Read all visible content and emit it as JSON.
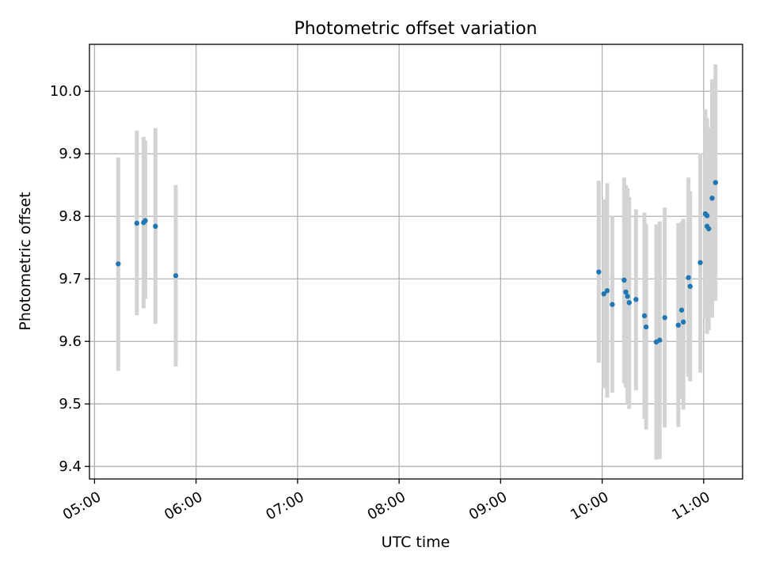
{
  "chart_data": {
    "type": "scatter",
    "title": "Photometric offset variation",
    "xlabel": "UTC time",
    "ylabel": "Photometric offset",
    "xlim": [
      "04:57",
      "11:23"
    ],
    "ylim": [
      9.38,
      10.075
    ],
    "grid": true,
    "x_ticks": [
      "05:00",
      "06:00",
      "07:00",
      "08:00",
      "09:00",
      "10:00",
      "11:00"
    ],
    "y_ticks": [
      9.4,
      9.5,
      9.6,
      9.7,
      9.8,
      9.9,
      10.0
    ],
    "y_tick_labels": [
      "9.4",
      "9.5",
      "9.6",
      "9.7",
      "9.8",
      "9.9",
      "10.0"
    ],
    "colors": {
      "marker": "#1f77b4",
      "errorbar": "#d3d3d3",
      "grid": "#b0b0b0"
    },
    "series": [
      {
        "points": [
          {
            "x": "05:14",
            "y": 9.724,
            "ylow": 9.553,
            "yhigh": 9.894
          },
          {
            "x": "05:25",
            "y": 9.789,
            "ylow": 9.642,
            "yhigh": 9.937
          },
          {
            "x": "05:29",
            "y": 9.79,
            "ylow": 9.653,
            "yhigh": 9.927
          },
          {
            "x": "05:30",
            "y": 9.793,
            "ylow": 9.668,
            "yhigh": 9.921
          },
          {
            "x": "05:36",
            "y": 9.784,
            "ylow": 9.628,
            "yhigh": 9.941
          },
          {
            "x": "05:48",
            "y": 9.705,
            "ylow": 9.56,
            "yhigh": 9.85
          },
          {
            "x": "09:58",
            "y": 9.711,
            "ylow": 9.566,
            "yhigh": 9.857
          },
          {
            "x": "10:01",
            "y": 9.676,
            "ylow": 9.525,
            "yhigh": 9.827
          },
          {
            "x": "10:03",
            "y": 9.681,
            "ylow": 9.51,
            "yhigh": 9.853
          },
          {
            "x": "10:06",
            "y": 9.659,
            "ylow": 9.518,
            "yhigh": 9.8
          },
          {
            "x": "10:13",
            "y": 9.698,
            "ylow": 9.533,
            "yhigh": 9.862
          },
          {
            "x": "10:14",
            "y": 9.679,
            "ylow": 9.526,
            "yhigh": 9.85
          },
          {
            "x": "10:15",
            "y": 9.672,
            "ylow": 9.5,
            "yhigh": 9.845
          },
          {
            "x": "10:16",
            "y": 9.662,
            "ylow": 9.492,
            "yhigh": 9.831
          },
          {
            "x": "10:20",
            "y": 9.667,
            "ylow": 9.522,
            "yhigh": 9.811
          },
          {
            "x": "10:25",
            "y": 9.641,
            "ylow": 9.476,
            "yhigh": 9.806
          },
          {
            "x": "10:26",
            "y": 9.623,
            "ylow": 9.459,
            "yhigh": 9.788
          },
          {
            "x": "10:32",
            "y": 9.599,
            "ylow": 9.411,
            "yhigh": 9.787
          },
          {
            "x": "10:34",
            "y": 9.602,
            "ylow": 9.412,
            "yhigh": 9.792
          },
          {
            "x": "10:37",
            "y": 9.638,
            "ylow": 9.462,
            "yhigh": 9.814
          },
          {
            "x": "10:45",
            "y": 9.626,
            "ylow": 9.463,
            "yhigh": 9.789
          },
          {
            "x": "10:47",
            "y": 9.65,
            "ylow": 9.508,
            "yhigh": 9.792
          },
          {
            "x": "10:48",
            "y": 9.631,
            "ylow": 9.491,
            "yhigh": 9.796
          },
          {
            "x": "10:51",
            "y": 9.702,
            "ylow": 9.543,
            "yhigh": 9.862
          },
          {
            "x": "10:52",
            "y": 9.688,
            "ylow": 9.536,
            "yhigh": 9.84
          },
          {
            "x": "10:58",
            "y": 9.726,
            "ylow": 9.55,
            "yhigh": 9.901
          },
          {
            "x": "11:01",
            "y": 9.804,
            "ylow": 9.637,
            "yhigh": 9.971
          },
          {
            "x": "11:02",
            "y": 9.801,
            "ylow": 9.654,
            "yhigh": 9.947
          },
          {
            "x": "11:02",
            "y": 9.784,
            "ylow": 9.612,
            "yhigh": 9.957
          },
          {
            "x": "11:03",
            "y": 9.78,
            "ylow": 9.618,
            "yhigh": 9.942
          },
          {
            "x": "11:05",
            "y": 9.829,
            "ylow": 9.638,
            "yhigh": 10.019
          },
          {
            "x": "11:07",
            "y": 9.854,
            "ylow": 9.665,
            "yhigh": 10.043
          }
        ]
      }
    ]
  }
}
